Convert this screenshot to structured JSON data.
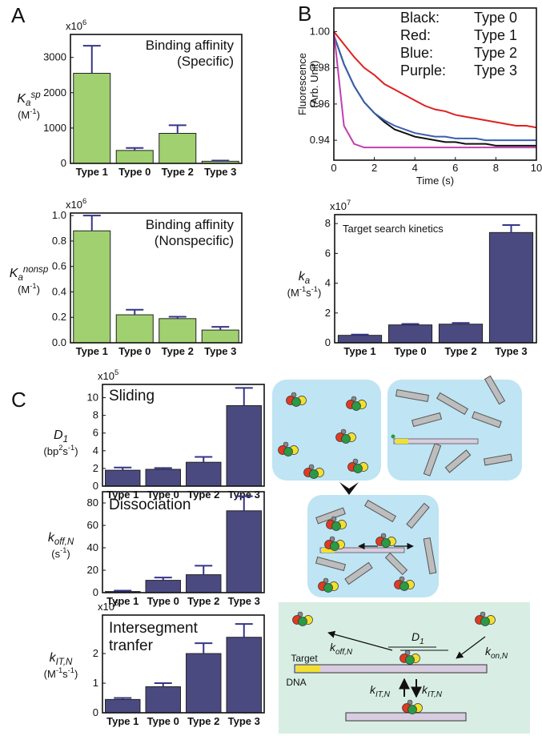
{
  "panels": [
    "A",
    "B",
    "C"
  ],
  "chart_data": [
    {
      "type": "bar",
      "multiplier": [
        {
          "text": "x10"
        },
        {
          "text": "6",
          "baseline": "super"
        }
      ],
      "ylabel": [
        [
          {
            "text": "K",
            "italic": true
          },
          {
            "text": "a",
            "italic": true,
            "baseline": "sub"
          },
          {
            "text": "sp",
            "italic": true,
            "baseline": "super"
          }
        ],
        [
          {
            "text": "(M"
          },
          {
            "text": "-1",
            "baseline": "super"
          },
          {
            "text": ")"
          }
        ]
      ],
      "annotation": [
        "Binding affinity",
        "(Specific)"
      ],
      "categories": [
        "Type 1",
        "Type 0",
        "Type 2",
        "Type 3"
      ],
      "values": [
        2550,
        366,
        850,
        60
      ],
      "errors": [
        780,
        70,
        230,
        20
      ],
      "color": "#a0d070",
      "error_color": "#35358a",
      "ylim": [
        0,
        3650
      ],
      "yticks": [
        0,
        1000,
        2000,
        3000
      ]
    },
    {
      "type": "bar",
      "multiplier": [
        {
          "text": "x10"
        },
        {
          "text": "6",
          "baseline": "super"
        }
      ],
      "ylabel": [
        [
          {
            "text": "K",
            "italic": true
          },
          {
            "text": "a",
            "italic": true,
            "baseline": "sub"
          },
          {
            "text": "nonsp",
            "italic": true,
            "baseline": "super"
          }
        ],
        [
          {
            "text": "(M"
          },
          {
            "text": "-1",
            "baseline": "super"
          },
          {
            "text": ")"
          }
        ]
      ],
      "annotation": [
        "Binding affinity",
        "(Nonspecific)"
      ],
      "categories": [
        "Type 1",
        "Type 0",
        "Type 2",
        "Type 3"
      ],
      "values": [
        0.88,
        0.22,
        0.19,
        0.1
      ],
      "errors": [
        0.12,
        0.04,
        0.015,
        0.025
      ],
      "color": "#a0d070",
      "error_color": "#35358a",
      "ylim": [
        0,
        1.02
      ],
      "yticks": [
        {
          "value": 0,
          "label": "0.0"
        },
        0.2,
        0.4,
        0.6,
        0.8,
        {
          "value": 1,
          "label": "1.0"
        }
      ]
    },
    {
      "type": "line",
      "ylabel": [
        "Fluorescence",
        "(Arb. Unit)"
      ],
      "xlabel": "Time (s)",
      "x": [
        0,
        0.5,
        1,
        1.5,
        2,
        2.5,
        3,
        3.5,
        4,
        4.5,
        5,
        5.5,
        6,
        6.5,
        7,
        7.5,
        8,
        8.5,
        9,
        9.5,
        10
      ],
      "series": [
        {
          "name": "Type 0",
          "color_name": "Black:",
          "color": "#111111",
          "values": [
            0.998,
            0.982,
            0.97,
            0.961,
            0.955,
            0.95,
            0.946,
            0.944,
            0.942,
            0.941,
            0.94,
            0.939,
            0.939,
            0.938,
            0.938,
            0.938,
            0.937,
            0.937,
            0.937,
            0.937,
            0.937
          ]
        },
        {
          "name": "Type 1",
          "color_name": "Red:",
          "color": "#e02020",
          "values": [
            1.0,
            0.993,
            0.986,
            0.98,
            0.976,
            0.971,
            0.968,
            0.965,
            0.962,
            0.959,
            0.957,
            0.956,
            0.954,
            0.953,
            0.952,
            0.951,
            0.95,
            0.949,
            0.948,
            0.948,
            0.947
          ]
        },
        {
          "name": "Type 2",
          "color_name": "Blue:",
          "color": "#3a5fb0",
          "values": [
            0.998,
            0.982,
            0.97,
            0.961,
            0.955,
            0.951,
            0.948,
            0.946,
            0.944,
            0.943,
            0.942,
            0.942,
            0.941,
            0.941,
            0.941,
            0.94,
            0.94,
            0.94,
            0.94,
            0.94,
            0.94
          ]
        },
        {
          "name": "Type 3",
          "color_name": "Purple:",
          "color": "#c040b0",
          "values": [
            1.0,
            0.948,
            0.938,
            0.936,
            0.936,
            0.936,
            0.936,
            0.936,
            0.936,
            0.936,
            0.936,
            0.936,
            0.936,
            0.936,
            0.936,
            0.936,
            0.936,
            0.936,
            0.936,
            0.936,
            0.936
          ]
        }
      ],
      "xlim": [
        0,
        10
      ],
      "xticks": [
        0,
        2,
        4,
        6,
        8,
        10
      ],
      "ylim": [
        0.929,
        1.013
      ],
      "yticks": [
        0.94,
        0.96,
        0.98,
        {
          "value": 1,
          "label": "1.00"
        }
      ]
    },
    {
      "type": "bar",
      "multiplier": [
        {
          "text": "x10"
        },
        {
          "text": "7",
          "baseline": "super"
        }
      ],
      "ylabel": [
        [
          {
            "text": "k",
            "italic": true
          },
          {
            "text": "a",
            "italic": true,
            "baseline": "sub"
          }
        ],
        [
          {
            "text": "(M"
          },
          {
            "text": "-1",
            "baseline": "super"
          },
          {
            "text": "s"
          },
          {
            "text": "-1",
            "baseline": "super"
          },
          {
            "text": ")"
          }
        ]
      ],
      "annotation": [
        "Target search kinetics"
      ],
      "categories": [
        "Type 1",
        "Type 0",
        "Type 2",
        "Type 3"
      ],
      "values": [
        0.5,
        1.2,
        1.25,
        7.4
      ],
      "errors": [
        0.05,
        0.06,
        0.08,
        0.5
      ],
      "color": "#4b4a80",
      "error_color": "#35358a",
      "ylim": [
        0,
        8.6
      ],
      "yticks": [
        0,
        2,
        4,
        6,
        8
      ]
    },
    {
      "type": "bar",
      "multiplier": [
        {
          "text": "x10"
        },
        {
          "text": "5",
          "baseline": "super"
        }
      ],
      "ylabel": [
        [
          {
            "text": "D",
            "italic": true
          },
          {
            "text": "1",
            "italic": true,
            "baseline": "sub"
          }
        ],
        [
          {
            "text": "(bp"
          },
          {
            "text": "2",
            "baseline": "super"
          },
          {
            "text": "s"
          },
          {
            "text": "-1",
            "baseline": "super"
          },
          {
            "text": ")"
          }
        ]
      ],
      "annotation": [
        "Sliding"
      ],
      "categories": [
        "Type 1",
        "Type 0",
        "Type 2",
        "Type 3"
      ],
      "values": [
        1.8,
        1.9,
        2.7,
        9.1
      ],
      "errors": [
        0.3,
        0.15,
        0.6,
        2.0
      ],
      "color": "#4b4a80",
      "error_color": "#35358a",
      "ylim": [
        0,
        11.5
      ],
      "yticks": [
        0,
        2,
        4,
        6,
        8,
        10
      ]
    },
    {
      "type": "bar",
      "ylabel": [
        [
          {
            "text": "k",
            "italic": true
          },
          {
            "text": "off,N",
            "italic": true,
            "baseline": "sub"
          }
        ],
        [
          {
            "text": "(s"
          },
          {
            "text": "-1",
            "baseline": "super"
          },
          {
            "text": ")"
          }
        ]
      ],
      "annotation": [
        "Dissociation"
      ],
      "categories": [
        "Type 1",
        "Type 0",
        "Type 2",
        "Type 3"
      ],
      "values": [
        1,
        11,
        16,
        73
      ],
      "errors": [
        0.8,
        2.5,
        8,
        13
      ],
      "color": "#4b4a80",
      "error_color": "#35358a",
      "ylim": [
        0,
        90
      ],
      "yticks": [
        0,
        20,
        40,
        60,
        80
      ]
    },
    {
      "type": "bar",
      "multiplier": [
        {
          "text": "x10"
        },
        {
          "text": "6",
          "baseline": "super"
        }
      ],
      "ylabel": [
        [
          {
            "text": "k",
            "italic": true
          },
          {
            "text": "IT,N",
            "italic": true,
            "baseline": "sub"
          }
        ],
        [
          {
            "text": "(M"
          },
          {
            "text": "-1",
            "baseline": "super"
          },
          {
            "text": "s"
          },
          {
            "text": "-1",
            "baseline": "super"
          },
          {
            "text": ")"
          }
        ]
      ],
      "annotation": [
        "Intersegment",
        "tranfer"
      ],
      "categories": [
        "Type 1",
        "Type 0",
        "Type 2",
        "Type 3"
      ],
      "values": [
        0.45,
        0.88,
        2.0,
        2.55
      ],
      "errors": [
        0.05,
        0.12,
        0.35,
        0.45
      ],
      "color": "#4b4a80",
      "error_color": "#35358a",
      "ylim": [
        0,
        3.3
      ],
      "yticks": [
        0,
        1,
        2
      ]
    }
  ],
  "diagram": {
    "target": "Target",
    "dna": "DNA",
    "k_off": {
      "main": "k",
      "sub": "off,N"
    },
    "d1": {
      "main": "D",
      "sub": "1"
    },
    "k_on": {
      "main": "k",
      "sub": "on,N"
    },
    "k_it": {
      "main": "k",
      "sub": "IT,N"
    }
  }
}
